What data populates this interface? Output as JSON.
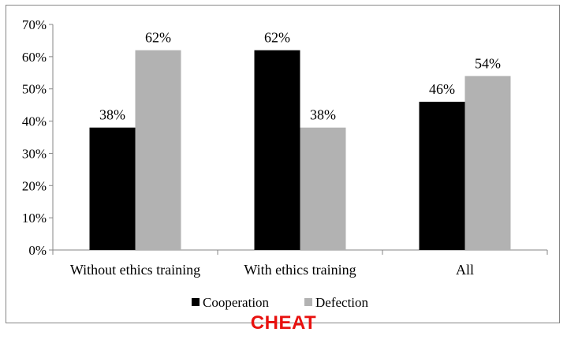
{
  "chart_data": {
    "type": "bar",
    "categories": [
      "Without ethics training",
      "With ethics training",
      "All"
    ],
    "series": [
      {
        "name": "Cooperation",
        "values": [
          38,
          62,
          46
        ],
        "color": "#000000"
      },
      {
        "name": "Defection",
        "values": [
          62,
          38,
          54
        ],
        "color": "#b2b2b2"
      }
    ],
    "data_labels": [
      [
        "38%",
        "62%",
        "46%"
      ],
      [
        "62%",
        "38%",
        "54%"
      ]
    ],
    "yticks": [
      "0%",
      "10%",
      "20%",
      "30%",
      "40%",
      "50%",
      "60%",
      "70%"
    ],
    "ylim": [
      0,
      70
    ],
    "grid": false,
    "legend_position": "bottom"
  },
  "caption": "CHEAT"
}
